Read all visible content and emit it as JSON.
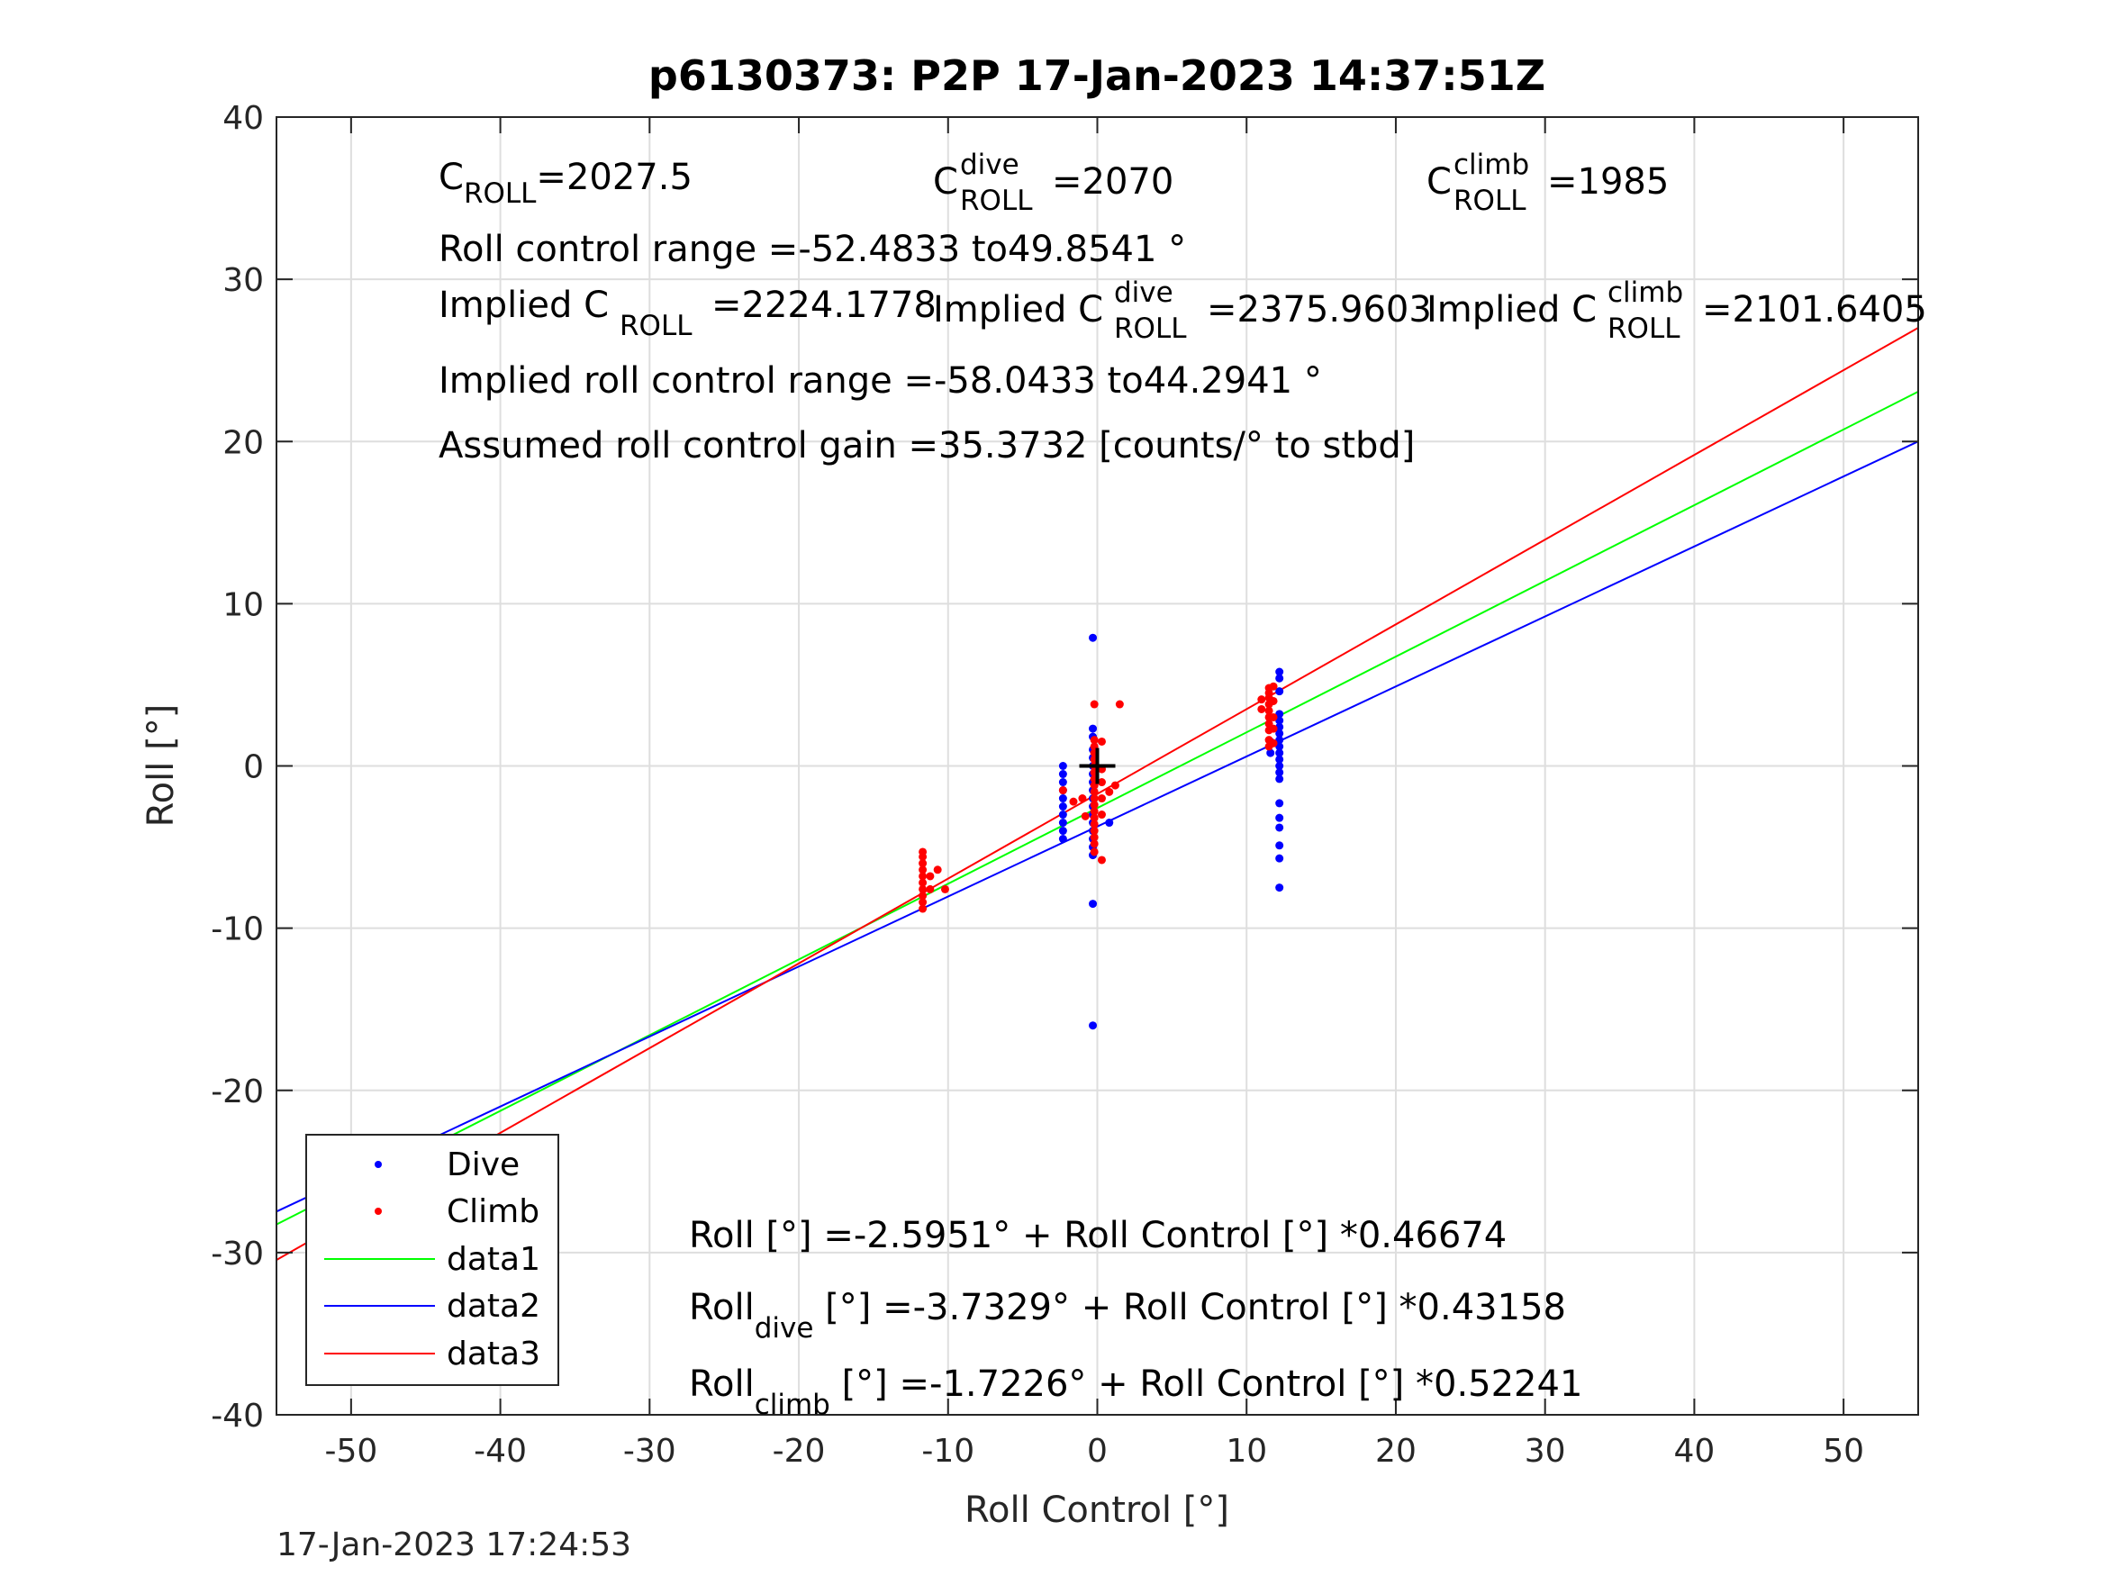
{
  "chart_data": {
    "type": "scatter",
    "title": "p6130373: P2P 17-Jan-2023 14:37:51Z",
    "xlabel": "Roll Control [°]",
    "ylabel": "Roll [°]",
    "xlim": [
      -55,
      55
    ],
    "ylim": [
      -40,
      40
    ],
    "xticks": [
      -50,
      -40,
      -30,
      -20,
      -10,
      0,
      10,
      20,
      30,
      40,
      50
    ],
    "yticks": [
      -40,
      -30,
      -20,
      -10,
      0,
      10,
      20,
      30,
      40
    ],
    "grid": true,
    "legend_placement": "bottom-left",
    "legend": [
      "Dive",
      "Climb",
      "data1",
      "data2",
      "data3"
    ],
    "series": [
      {
        "name": "Dive",
        "kind": "points",
        "color": "#0000ff",
        "x": [
          -2.3,
          -2.3,
          -2.3,
          -2.3,
          -2.3,
          -2.3,
          -2.3,
          -2.3,
          -2.3,
          -2.3,
          -0.3,
          -0.3,
          -0.3,
          -0.3,
          -0.3,
          -0.3,
          -0.3,
          -0.3,
          -0.3,
          -0.3,
          -0.3,
          -0.3,
          -0.3,
          -0.3,
          -0.3,
          -0.3,
          -0.3,
          -0.3,
          -0.3,
          0.8,
          12.2,
          12.2,
          12.2,
          12.2,
          12.2,
          12.2,
          12.2,
          12.2,
          12.2,
          12.2,
          12.2,
          12.2,
          12.2,
          12.2,
          12.2,
          12.2,
          12.2,
          12.2,
          12.2,
          12.2,
          11.6,
          11.6
        ],
        "y": [
          0,
          -0.5,
          -1,
          -1.5,
          -2,
          -2.5,
          -3,
          -3.5,
          -4,
          -4.5,
          7.9,
          2.3,
          1.8,
          1.0,
          0.5,
          0,
          -0.5,
          -1,
          -1.5,
          -2,
          -2.5,
          -3,
          -3.5,
          -4,
          -4.5,
          -5,
          -5.5,
          -8.5,
          -16,
          -3.5,
          5.8,
          5.4,
          4.6,
          3.2,
          2.8,
          2.4,
          2,
          1.6,
          1.2,
          0.8,
          0.4,
          0,
          -0.4,
          -0.8,
          -2.3,
          -3.2,
          -3.8,
          -4.9,
          -5.7,
          -7.5,
          1.5,
          0.8
        ]
      },
      {
        "name": "Climb",
        "kind": "points",
        "color": "#ff0000",
        "x": [
          -11.7,
          -11.7,
          -11.7,
          -11.7,
          -11.7,
          -11.7,
          -11.7,
          -11.7,
          -11.7,
          -11.7,
          -11.2,
          -11.2,
          -10.7,
          -10.2,
          -0.2,
          -0.2,
          -0.2,
          -0.2,
          -0.2,
          -0.2,
          -0.2,
          -0.2,
          -0.2,
          -0.2,
          -0.2,
          -0.2,
          -0.2,
          -0.2,
          -0.2,
          -0.2,
          -0.2,
          -0.2,
          -0.2,
          0.3,
          0.3,
          0.3,
          0.3,
          0.3,
          0.3,
          1.5,
          1.2,
          0.8,
          -1.0,
          -1.6,
          -0.8,
          -2.3,
          11.5,
          11.5,
          11.5,
          11.5,
          11.5,
          11.5,
          11.5,
          11.5,
          11.5,
          11.5,
          11.0,
          11.0,
          11.8,
          11.8,
          11.8,
          11.8,
          11.8
        ],
        "y": [
          -5.3,
          -5.6,
          -6,
          -6.4,
          -6.8,
          -7.2,
          -7.6,
          -8,
          -8.4,
          -8.8,
          -6.8,
          -7.6,
          -6.4,
          -7.6,
          3.8,
          1.6,
          1.2,
          0.8,
          0.4,
          0,
          -0.4,
          -0.8,
          -1.2,
          -1.6,
          -2,
          -2.4,
          -2.8,
          -3.2,
          -3.6,
          -4,
          -4.4,
          -4.8,
          -5.3,
          1.5,
          -0.2,
          -1,
          -2,
          -3,
          -5.8,
          3.8,
          -1.2,
          -1.6,
          -2.0,
          -2.2,
          -3.1,
          -1.5,
          4.8,
          4.5,
          4.2,
          3.8,
          3.4,
          3,
          2.6,
          2.2,
          1.6,
          1.2,
          4.1,
          3.5,
          4.9,
          4.0,
          3.0,
          2.3,
          1.4
        ]
      },
      {
        "name": "data1",
        "kind": "line",
        "color": "#00ff00",
        "intercept": -2.5951,
        "slope": 0.46674
      },
      {
        "name": "data2",
        "kind": "line",
        "color": "#0000ff",
        "intercept": -3.7329,
        "slope": 0.43158
      },
      {
        "name": "data3",
        "kind": "line",
        "color": "#ff0000",
        "intercept": -1.7226,
        "slope": 0.52241
      }
    ],
    "marker": {
      "x": 0,
      "y": 0,
      "color": "#000000"
    },
    "annotations": {
      "c": {
        "base": "C",
        "sub": "ROLL",
        "val": "=2027.5"
      },
      "c_dive": {
        "base": "C",
        "sup": "dive",
        "sub": "ROLL",
        "val": "=2070"
      },
      "c_climb": {
        "base": "C",
        "sup": "climb",
        "sub": "ROLL",
        "val": "=1985"
      },
      "range": "Roll control range =-52.4833 to49.8541 °",
      "imp_c": {
        "base": "Implied C",
        "sub": "ROLL",
        "val": "=2224.1778"
      },
      "imp_dive": {
        "base": "Implied C",
        "sup": "dive",
        "sub": "ROLL",
        "val": "=2375.9603"
      },
      "imp_climb": {
        "base": "Implied C",
        "sup": "climb",
        "sub": "ROLL",
        "val": "=2101.6405"
      },
      "imp_range": "Implied roll control range =-58.0433 to44.2941 °",
      "gain": "Assumed roll control gain =35.3732 [counts/° to stbd]",
      "eq_all": "Roll [°] =-2.5951° + Roll Control [°] *0.46674",
      "eq_dive": {
        "base": "Roll",
        "sub": "dive",
        "rest": " [°] =-3.7329° + Roll Control [°] *0.43158"
      },
      "eq_climb": {
        "base": "Roll",
        "sub": "climb",
        "rest": " [°] =-1.7226° + Roll Control [°] *0.52241"
      }
    },
    "footer": "17-Jan-2023 17:24:53"
  }
}
